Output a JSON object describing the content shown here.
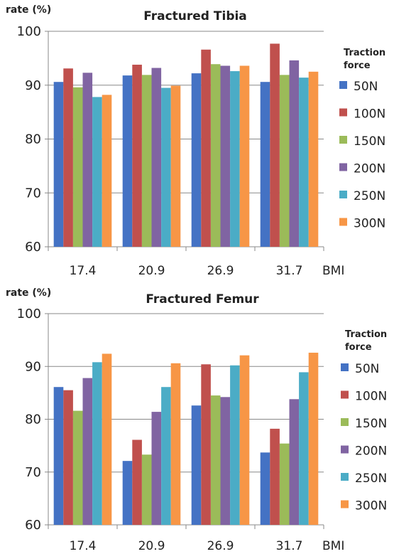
{
  "chart_data": [
    {
      "type": "bar",
      "title": "Fractured Tibia",
      "ylabel": "rate (%)",
      "xlabel": "BMI",
      "ylim": [
        60,
        100
      ],
      "yticks": [
        "60",
        "70",
        "80",
        "90",
        "100"
      ],
      "grid": true,
      "legend_title": "Traction force",
      "legend_position": "right",
      "categories": [
        "17.4",
        "20.9",
        "26.9",
        "31.7"
      ],
      "series": [
        {
          "name": "50N",
          "color": "#4472C4",
          "values": [
            90.6,
            91.8,
            92.2,
            90.6
          ]
        },
        {
          "name": "100N",
          "color": "#C0504D",
          "values": [
            93.1,
            93.8,
            96.6,
            97.7
          ]
        },
        {
          "name": "150N",
          "color": "#9BBB59",
          "values": [
            89.6,
            91.9,
            93.9,
            91.9
          ]
        },
        {
          "name": "200N",
          "color": "#8064A2",
          "values": [
            92.3,
            93.2,
            93.6,
            94.6
          ]
        },
        {
          "name": "250N",
          "color": "#4BACC6",
          "values": [
            87.8,
            89.5,
            92.6,
            91.4
          ]
        },
        {
          "name": "300N",
          "color": "#F79646",
          "values": [
            88.2,
            89.9,
            93.6,
            92.5
          ]
        }
      ]
    },
    {
      "type": "bar",
      "title": "Fractured Femur",
      "ylabel": "rate (%)",
      "xlabel": "BMI",
      "ylim": [
        60,
        100
      ],
      "yticks": [
        "60",
        "70",
        "80",
        "90",
        "100"
      ],
      "grid": true,
      "legend_title": "Traction force",
      "legend_position": "right",
      "categories": [
        "17.4",
        "20.9",
        "26.9",
        "31.7"
      ],
      "series": [
        {
          "name": "50N",
          "color": "#4472C4",
          "values": [
            86.1,
            72.1,
            82.6,
            73.7
          ]
        },
        {
          "name": "100N",
          "color": "#C0504D",
          "values": [
            85.5,
            76.1,
            90.4,
            78.2
          ]
        },
        {
          "name": "150N",
          "color": "#9BBB59",
          "values": [
            81.6,
            73.3,
            84.5,
            75.4
          ]
        },
        {
          "name": "200N",
          "color": "#8064A2",
          "values": [
            87.8,
            81.4,
            84.2,
            83.8
          ]
        },
        {
          "name": "250N",
          "color": "#4BACC6",
          "values": [
            90.8,
            86.1,
            90.2,
            88.9
          ]
        },
        {
          "name": "300N",
          "color": "#F79646",
          "values": [
            92.4,
            90.6,
            92.1,
            92.6
          ]
        }
      ]
    }
  ]
}
